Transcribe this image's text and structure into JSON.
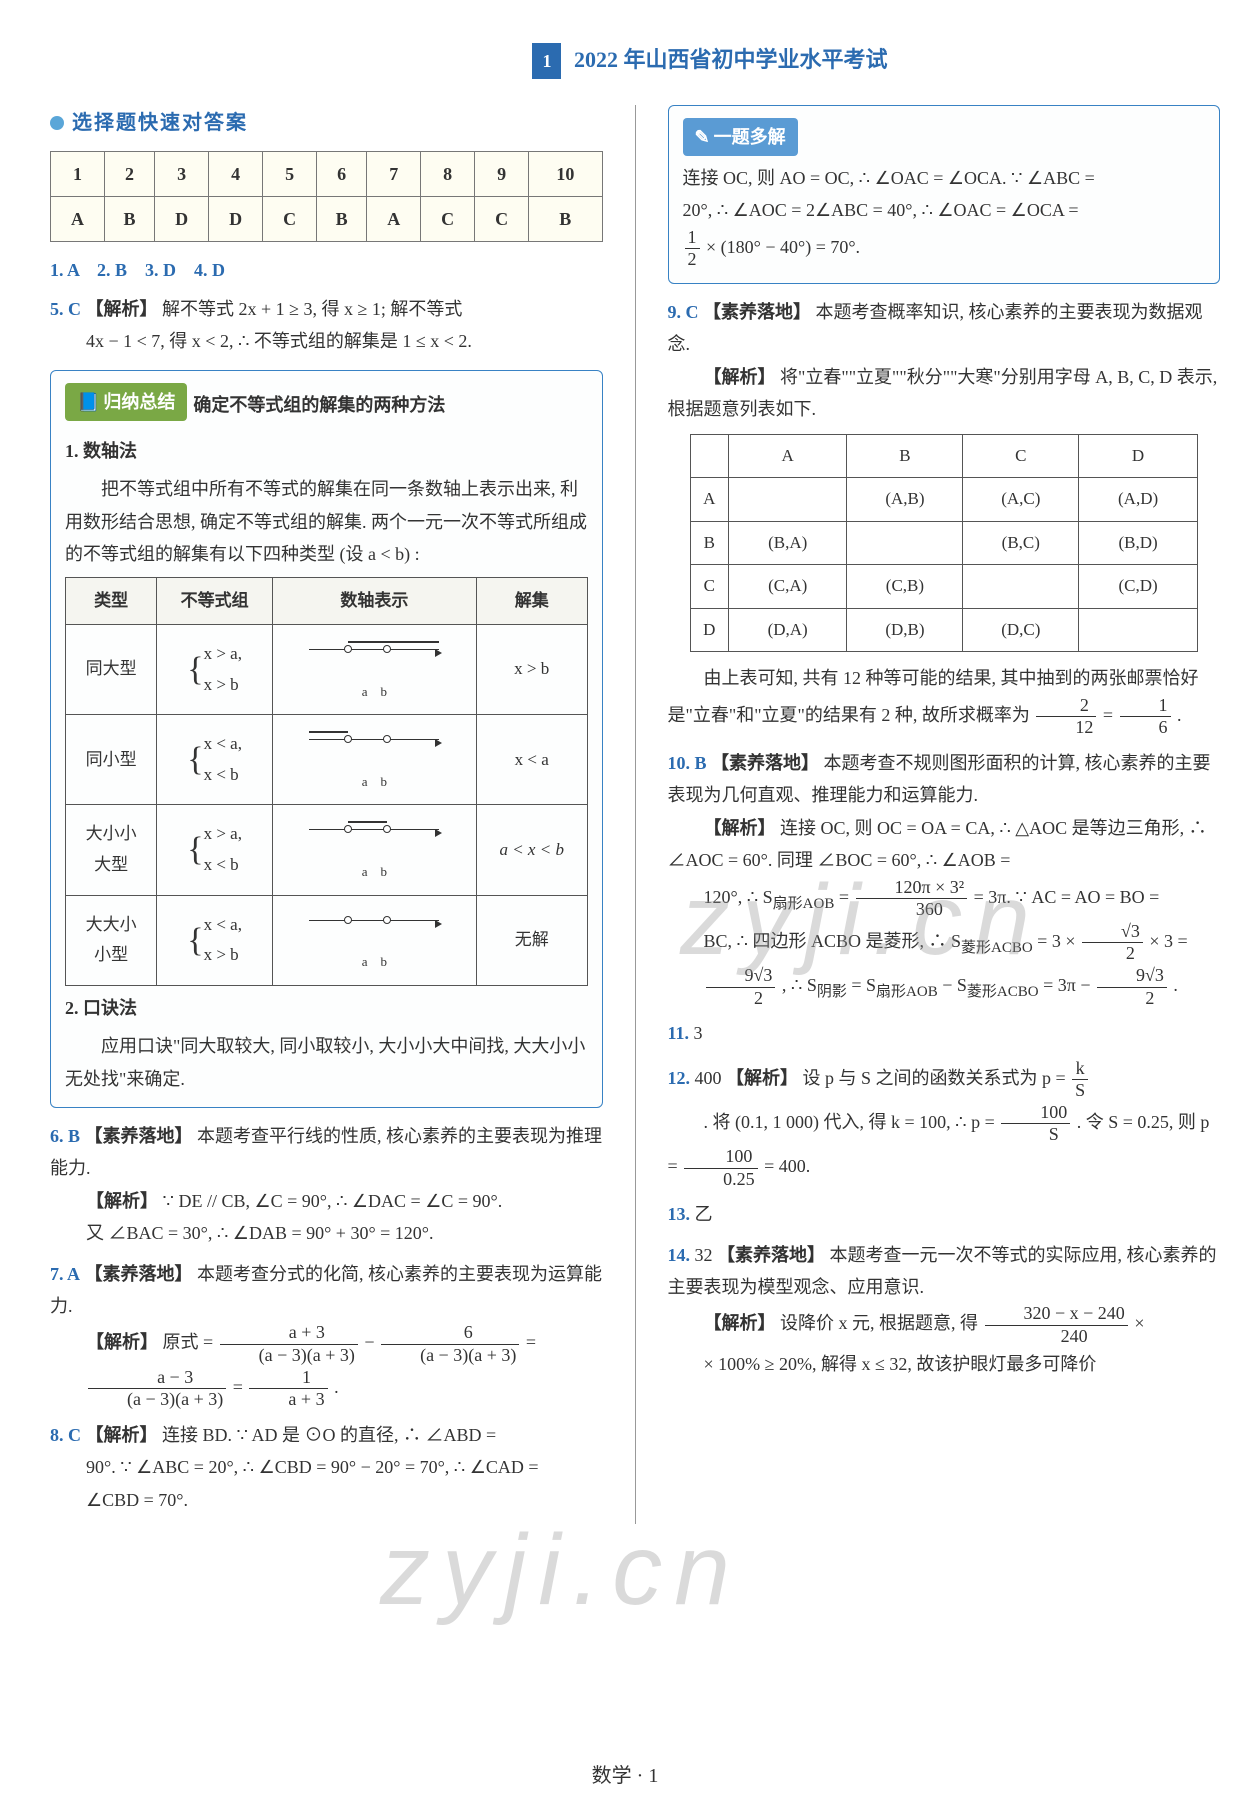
{
  "header": {
    "num": "1",
    "title": "2022 年山西省初中学业水平考试"
  },
  "left": {
    "quick_answers_title": "选择题快速对答案",
    "answer_table": {
      "nums": [
        "1",
        "2",
        "3",
        "4",
        "5",
        "6",
        "7",
        "8",
        "9",
        "10"
      ],
      "vals": [
        "A",
        "B",
        "D",
        "D",
        "C",
        "B",
        "A",
        "C",
        "C",
        "B"
      ]
    },
    "ans_line": "1. A　2. B　3. D　4. D",
    "q5": {
      "num": "5. C",
      "label": "【解析】",
      "text_a": "解不等式 2x + 1 ≥ 3, 得 x ≥ 1; 解不等式",
      "text_b": "4x − 1 < 7, 得 x < 2, ∴ 不等式组的解集是 1 ≤ x < 2."
    },
    "summary_box": {
      "pill": "归纳总结",
      "title": "确定不等式组的解集的两种方法",
      "method1_title": "1. 数轴法",
      "method1_body": "把不等式组中所有不等式的解集在同一条数轴上表示出来, 利用数形结合思想, 确定不等式组的解集. 两个一元一次不等式所组成的不等式组的解集有以下四种类型 (设 a < b) :",
      "table": {
        "headers": [
          "类型",
          "不等式组",
          "数轴表示",
          "解集"
        ],
        "rows": [
          {
            "type": "同大型",
            "grp": "x > a,\nx > b",
            "sol": "x > b"
          },
          {
            "type": "同小型",
            "grp": "x < a,\nx < b",
            "sol": "x < a"
          },
          {
            "type": "大小小\n大型",
            "grp": "x > a,\nx < b",
            "sol": "a < x < b"
          },
          {
            "type": "大大小\n小型",
            "grp": "x < a,\nx > b",
            "sol": "无解"
          }
        ]
      },
      "method2_title": "2. 口诀法",
      "method2_body": "应用口诀\"同大取较大, 同小取较小, 大小小大中间找, 大大小小无处找\"来确定."
    },
    "q6": {
      "num": "6. B",
      "tag": "【素养落地】",
      "text_a": "本题考查平行线的性质, 核心素养的主要表现为推理能力.",
      "label": "【解析】",
      "text_b": "∵ DE // CB, ∠C = 90°, ∴ ∠DAC = ∠C = 90°.",
      "text_c": "又 ∠BAC = 30°, ∴ ∠DAB = 90° + 30° = 120°."
    },
    "q7": {
      "num": "7. A",
      "tag": "【素养落地】",
      "text_a": "本题考查分式的化简, 核心素养的主要表现为运算能力.",
      "label": "【解析】",
      "frac_note": "原式 =",
      "frac1_n": "a + 3",
      "frac1_d": "(a − 3)(a + 3)",
      "minus": "−",
      "frac2_n": "6",
      "frac2_d": "(a − 3)(a + 3)",
      "eq": "=",
      "frac3_n": "a − 3",
      "frac3_d": "(a − 3)(a + 3)",
      "frac4_n": "1",
      "frac4_d": "a + 3",
      "period": "."
    },
    "q8": {
      "num": "8. C",
      "label": "【解析】",
      "text_a": "连接 BD. ∵ AD 是 ⊙O 的直径, ∴ ∠ABD =",
      "text_b": "90°. ∵ ∠ABC = 20°, ∴ ∠CBD = 90° − 20° = 70°, ∴ ∠CAD =",
      "text_c": "∠CBD = 70°."
    }
  },
  "right": {
    "multi_box": {
      "pill": "一题多解",
      "text_a": "连接 OC, 则 AO = OC, ∴ ∠OAC = ∠OCA. ∵ ∠ABC =",
      "text_b": "20°, ∴ ∠AOC = 2∠ABC = 40°, ∴ ∠OAC = ∠OCA =",
      "frac_n": "1",
      "frac_d": "2",
      "text_c": " × (180° − 40°) = 70°."
    },
    "q9": {
      "num": "9. C",
      "tag": "【素养落地】",
      "text_a": "本题考查概率知识, 核心素养的主要表现为数据观念.",
      "label": "【解析】",
      "text_b": "将\"立春\"\"立夏\"\"秋分\"\"大寒\"分别用字母 A, B, C, D 表示, 根据题意列表如下.",
      "table": {
        "headers": [
          "",
          "A",
          "B",
          "C",
          "D"
        ],
        "rows": [
          [
            "A",
            "",
            "(A,B)",
            "(A,C)",
            "(A,D)"
          ],
          [
            "B",
            "(B,A)",
            "",
            "(B,C)",
            "(B,D)"
          ],
          [
            "C",
            "(C,A)",
            "(C,B)",
            "",
            "(C,D)"
          ],
          [
            "D",
            "(D,A)",
            "(D,B)",
            "(D,C)",
            ""
          ]
        ]
      },
      "text_c": "由上表可知, 共有 12 种等可能的结果, 其中抽到的两张邮票恰好是\"立春\"和\"立夏\"的结果有 2 种, 故所求概率为",
      "frac1_n": "2",
      "frac1_d": "12",
      "eq": "=",
      "frac2_n": "1",
      "frac2_d": "6",
      "period": "."
    },
    "q10": {
      "num": "10. B",
      "tag": "【素养落地】",
      "text_a": "本题考查不规则图形面积的计算, 核心素养的主要表现为几何直观、推理能力和运算能力.",
      "label": "【解析】",
      "text_b": "连接 OC, 则 OC = OA = CA, ∴ △AOC 是等边三角形, ∴ ∠AOC = 60°. 同理 ∠BOC = 60°, ∴ ∠AOB =",
      "text_c": "120°, ∴ S",
      "sub1": "扇形AOB",
      "frac1_n": "120π × 3²",
      "frac1_d": "360",
      "text_d": " = 3π. ∵ AC = AO = BO =",
      "text_e": "BC, ∴ 四边形 ACBO 是菱形, ∴ S",
      "sub2": "菱形ACBO",
      "text_f": " = 3 × ",
      "frac2_n": "√3",
      "frac2_d": "2",
      "text_g": " × 3 =",
      "frac3_n": "9√3",
      "frac3_d": "2",
      "text_h": ", ∴ S",
      "sub3": "阴影",
      "text_i": " = S",
      "text_j": " − S",
      "text_k": " = 3π − ",
      "period": "."
    },
    "q11": {
      "num": "11.",
      "ans": "3"
    },
    "q12": {
      "num": "12.",
      "ans": "400",
      "label": "【解析】",
      "text_a": "设 p 与 S 之间的函数关系式为 p = ",
      "frac1_n": "k",
      "frac1_d": "S",
      "text_b": ". 将 (0.1, 1 000) 代入, 得 k = 100, ∴ p = ",
      "frac2_n": "100",
      "frac2_d": "S",
      "text_c": ". 令 S = 0.25, 则 p = ",
      "frac3_n": "100",
      "frac3_d": "0.25",
      "text_d": " = 400."
    },
    "q13": {
      "num": "13.",
      "ans": "乙"
    },
    "q14": {
      "num": "14.",
      "ans": "32",
      "tag": "【素养落地】",
      "text_a": "本题考查一元一次不等式的实际应用, 核心素养的主要表现为模型观念、应用意识.",
      "label": "【解析】",
      "text_b": "设降价 x 元, 根据题意, 得",
      "frac_n": "320 − x − 240",
      "frac_d": "240",
      "text_c": " × 100% ≥ 20%, 解得 x ≤ 32, 故该护眼灯最多可降价"
    }
  },
  "footer": "数学 · 1",
  "watermark": "zyji.cn"
}
